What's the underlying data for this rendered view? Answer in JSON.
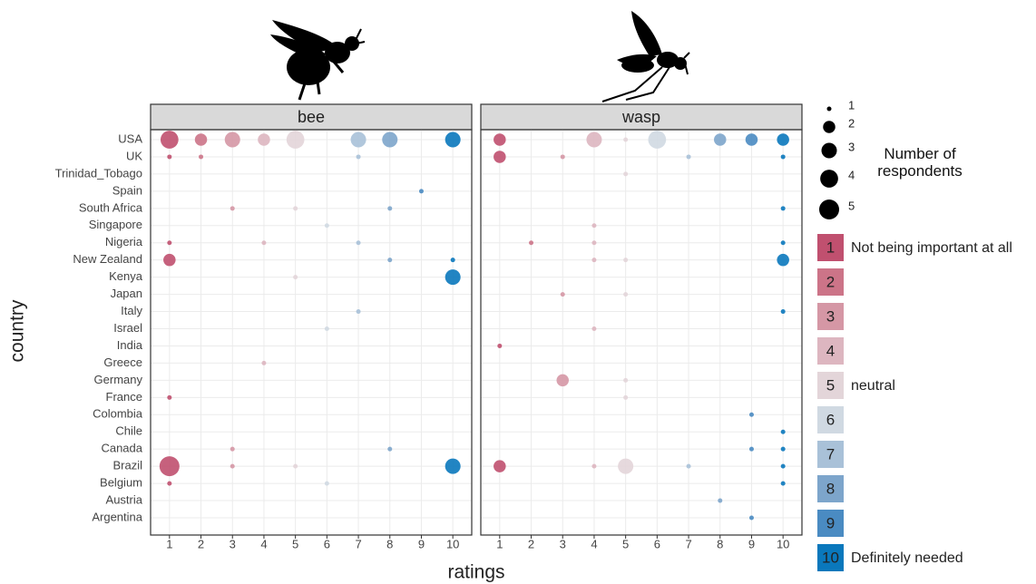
{
  "x_label": "ratings",
  "y_label": "country",
  "countries": [
    "USA",
    "UK",
    "Trinidad_Tobago",
    "Spain",
    "South Africa",
    "Singapore",
    "Nigeria",
    "New Zealand",
    "Kenya",
    "Japan",
    "Italy",
    "Israel",
    "India",
    "Greece",
    "Germany",
    "France",
    "Colombia",
    "Chile",
    "Canada",
    "Brazil",
    "Belgium",
    "Austria",
    "Argentina"
  ],
  "size_legend": {
    "title": "Number of respondents",
    "values": [
      1,
      2,
      3,
      4,
      5
    ]
  },
  "color_legend": {
    "levels": [
      1,
      2,
      3,
      4,
      5,
      6,
      7,
      8,
      9,
      10
    ],
    "colors": [
      "#c0506f",
      "#cc7488",
      "#d597a5",
      "#ddb6c0",
      "#e3d5d9",
      "#d0d9e2",
      "#a9c1d8",
      "#7da5cb",
      "#4a8bc2",
      "#0a78bc"
    ],
    "annotations": [
      {
        "level": 1,
        "text": "Not being important at all"
      },
      {
        "level": 5,
        "text": "neutral"
      },
      {
        "level": 10,
        "text": "Definitely needed"
      }
    ]
  },
  "chart_data": [
    {
      "type": "scatter",
      "title": "bee",
      "xlim": [
        0.4,
        10.6
      ],
      "xticks": [
        1,
        2,
        3,
        4,
        5,
        6,
        7,
        8,
        9,
        10
      ],
      "grid": true,
      "points": [
        {
          "country": "USA",
          "rating": 1,
          "n": 4
        },
        {
          "country": "USA",
          "rating": 2,
          "n": 2
        },
        {
          "country": "USA",
          "rating": 3,
          "n": 3
        },
        {
          "country": "USA",
          "rating": 4,
          "n": 2
        },
        {
          "country": "USA",
          "rating": 5,
          "n": 4
        },
        {
          "country": "USA",
          "rating": 7,
          "n": 3
        },
        {
          "country": "USA",
          "rating": 8,
          "n": 3
        },
        {
          "country": "USA",
          "rating": 10,
          "n": 3
        },
        {
          "country": "UK",
          "rating": 1,
          "n": 1
        },
        {
          "country": "UK",
          "rating": 2,
          "n": 1
        },
        {
          "country": "UK",
          "rating": 7,
          "n": 1
        },
        {
          "country": "Spain",
          "rating": 9,
          "n": 1
        },
        {
          "country": "South Africa",
          "rating": 3,
          "n": 1
        },
        {
          "country": "South Africa",
          "rating": 5,
          "n": 1
        },
        {
          "country": "South Africa",
          "rating": 8,
          "n": 1
        },
        {
          "country": "Singapore",
          "rating": 6,
          "n": 1
        },
        {
          "country": "Nigeria",
          "rating": 1,
          "n": 1
        },
        {
          "country": "Nigeria",
          "rating": 4,
          "n": 1
        },
        {
          "country": "Nigeria",
          "rating": 7,
          "n": 1
        },
        {
          "country": "New Zealand",
          "rating": 1,
          "n": 2
        },
        {
          "country": "New Zealand",
          "rating": 8,
          "n": 1
        },
        {
          "country": "New Zealand",
          "rating": 10,
          "n": 1
        },
        {
          "country": "Kenya",
          "rating": 5,
          "n": 1
        },
        {
          "country": "Kenya",
          "rating": 10,
          "n": 3
        },
        {
          "country": "Italy",
          "rating": 7,
          "n": 1
        },
        {
          "country": "Israel",
          "rating": 6,
          "n": 1
        },
        {
          "country": "Greece",
          "rating": 4,
          "n": 1
        },
        {
          "country": "France",
          "rating": 1,
          "n": 1
        },
        {
          "country": "Canada",
          "rating": 3,
          "n": 1
        },
        {
          "country": "Canada",
          "rating": 8,
          "n": 1
        },
        {
          "country": "Brazil",
          "rating": 1,
          "n": 5
        },
        {
          "country": "Brazil",
          "rating": 3,
          "n": 1
        },
        {
          "country": "Brazil",
          "rating": 5,
          "n": 1
        },
        {
          "country": "Brazil",
          "rating": 10,
          "n": 3
        },
        {
          "country": "Belgium",
          "rating": 1,
          "n": 1
        },
        {
          "country": "Belgium",
          "rating": 6,
          "n": 1
        }
      ]
    },
    {
      "type": "scatter",
      "title": "wasp",
      "xlim": [
        0.4,
        10.6
      ],
      "xticks": [
        1,
        2,
        3,
        4,
        5,
        6,
        7,
        8,
        9,
        10
      ],
      "grid": true,
      "points": [
        {
          "country": "USA",
          "rating": 1,
          "n": 2
        },
        {
          "country": "USA",
          "rating": 4,
          "n": 3
        },
        {
          "country": "USA",
          "rating": 5,
          "n": 1
        },
        {
          "country": "USA",
          "rating": 6,
          "n": 4
        },
        {
          "country": "USA",
          "rating": 8,
          "n": 2
        },
        {
          "country": "USA",
          "rating": 9,
          "n": 2
        },
        {
          "country": "USA",
          "rating": 10,
          "n": 2
        },
        {
          "country": "UK",
          "rating": 1,
          "n": 2
        },
        {
          "country": "UK",
          "rating": 3,
          "n": 1
        },
        {
          "country": "UK",
          "rating": 7,
          "n": 1
        },
        {
          "country": "UK",
          "rating": 10,
          "n": 1
        },
        {
          "country": "Trinidad_Tobago",
          "rating": 5,
          "n": 1
        },
        {
          "country": "South Africa",
          "rating": 10,
          "n": 1
        },
        {
          "country": "Singapore",
          "rating": 4,
          "n": 1
        },
        {
          "country": "Nigeria",
          "rating": 2,
          "n": 1
        },
        {
          "country": "Nigeria",
          "rating": 4,
          "n": 1
        },
        {
          "country": "Nigeria",
          "rating": 10,
          "n": 1
        },
        {
          "country": "New Zealand",
          "rating": 4,
          "n": 1
        },
        {
          "country": "New Zealand",
          "rating": 5,
          "n": 1
        },
        {
          "country": "New Zealand",
          "rating": 10,
          "n": 2
        },
        {
          "country": "Japan",
          "rating": 3,
          "n": 1
        },
        {
          "country": "Japan",
          "rating": 5,
          "n": 1
        },
        {
          "country": "Italy",
          "rating": 10,
          "n": 1
        },
        {
          "country": "Israel",
          "rating": 4,
          "n": 1
        },
        {
          "country": "India",
          "rating": 1,
          "n": 1
        },
        {
          "country": "Germany",
          "rating": 3,
          "n": 2
        },
        {
          "country": "Germany",
          "rating": 5,
          "n": 1
        },
        {
          "country": "France",
          "rating": 5,
          "n": 1
        },
        {
          "country": "Colombia",
          "rating": 9,
          "n": 1
        },
        {
          "country": "Chile",
          "rating": 10,
          "n": 1
        },
        {
          "country": "Canada",
          "rating": 9,
          "n": 1
        },
        {
          "country": "Canada",
          "rating": 10,
          "n": 1
        },
        {
          "country": "Brazil",
          "rating": 1,
          "n": 2
        },
        {
          "country": "Brazil",
          "rating": 4,
          "n": 1
        },
        {
          "country": "Brazil",
          "rating": 5,
          "n": 3
        },
        {
          "country": "Brazil",
          "rating": 7,
          "n": 1
        },
        {
          "country": "Brazil",
          "rating": 10,
          "n": 1
        },
        {
          "country": "Belgium",
          "rating": 10,
          "n": 1
        },
        {
          "country": "Austria",
          "rating": 8,
          "n": 1
        },
        {
          "country": "Argentina",
          "rating": 9,
          "n": 1
        }
      ]
    }
  ]
}
